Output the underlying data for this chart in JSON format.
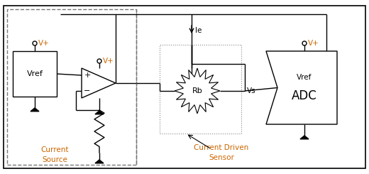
{
  "bg_color": "#ffffff",
  "border_color": "#000000",
  "dashed_color": "#777777",
  "orange_color": "#cc6600",
  "fig_width": 5.2,
  "fig_height": 2.45,
  "dpi": 100,
  "current_source_label": "Current\nSource",
  "current_driven_label": "Current Driven\nSensor",
  "vref_label": "Vref",
  "adc_label": "ADC",
  "rb_label": "Rb",
  "vs_label": "Vs",
  "ie_label": "Ie",
  "vplus": "V+"
}
